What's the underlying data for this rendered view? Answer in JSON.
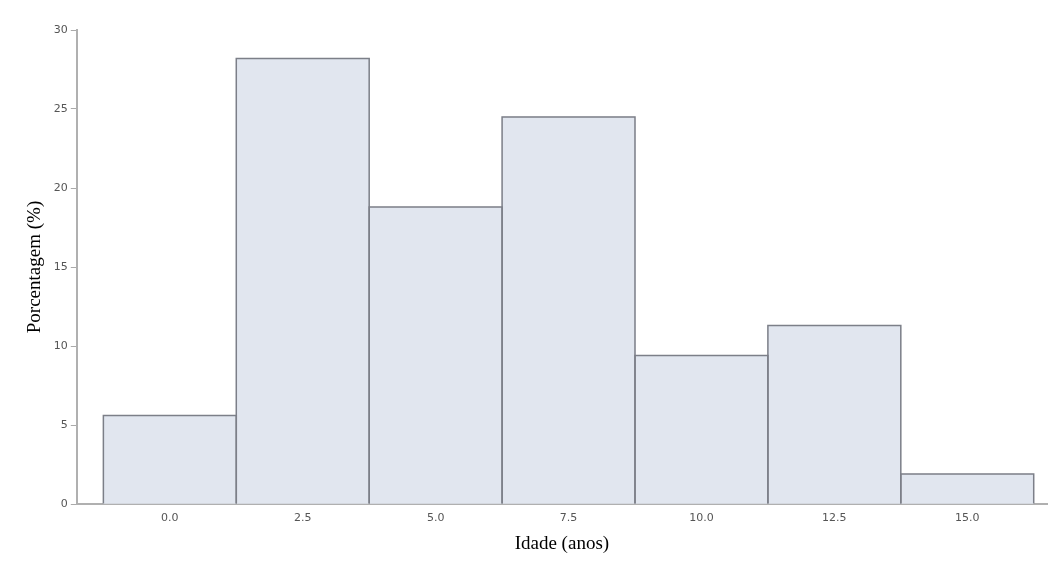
{
  "chart_data": {
    "type": "histogram",
    "xlabel": "Idade (anos)",
    "ylabel": "Porcentagem (%)",
    "bins": [
      -1.25,
      1.25,
      3.75,
      6.25,
      8.75,
      11.25,
      13.75,
      16.25
    ],
    "values": [
      5.6,
      28.2,
      18.8,
      24.5,
      9.4,
      11.3,
      1.9
    ],
    "color": "#e1e6ef",
    "xlim": [
      -1.75,
      16.5
    ],
    "xticks": [
      {
        "value": 0,
        "label": "0.0"
      },
      {
        "value": 2.5,
        "label": "2.5"
      },
      {
        "value": 5,
        "label": "5.0"
      },
      {
        "value": 7.5,
        "label": "7.5"
      },
      {
        "value": 10,
        "label": "10.0"
      },
      {
        "value": 12.5,
        "label": "12.5"
      },
      {
        "value": 15,
        "label": "15.0"
      }
    ],
    "ylim": [
      0,
      30
    ],
    "yticks": [
      0,
      5,
      10,
      15,
      20,
      25,
      30
    ],
    "grid": false,
    "legend": false
  }
}
